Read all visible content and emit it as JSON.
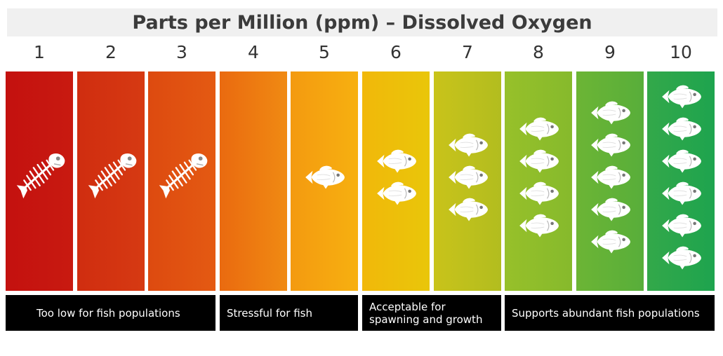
{
  "title": "Parts per Million (ppm) – Dissolved Oxygen",
  "levels": [
    {
      "ppm": "1",
      "color_top": "#c4110f",
      "color_bottom": "#c81a10",
      "icon": "fish-skeleton-icon",
      "fish": 0,
      "skeleton": true
    },
    {
      "ppm": "2",
      "color_top": "#d02d10",
      "color_bottom": "#d63a12",
      "icon": "fish-skeleton-icon",
      "fish": 0,
      "skeleton": true
    },
    {
      "ppm": "3",
      "color_top": "#dd4a10",
      "color_bottom": "#e45a12",
      "icon": "fish-skeleton-icon",
      "fish": 0,
      "skeleton": true
    },
    {
      "ppm": "4",
      "color_top": "#ea6a10",
      "color_bottom": "#f08a12",
      "icon": "none",
      "fish": 0,
      "skeleton": false
    },
    {
      "ppm": "5",
      "color_top": "#f49a10",
      "color_bottom": "#f7b010",
      "icon": "fish-icon",
      "fish": 1,
      "skeleton": false
    },
    {
      "ppm": "6",
      "color_top": "#f1b80a",
      "color_bottom": "#e9c60a",
      "icon": "fish-icon",
      "fish": 2,
      "skeleton": false
    },
    {
      "ppm": "7",
      "color_top": "#c9c31a",
      "color_bottom": "#b2bd1f",
      "icon": "fish-icon",
      "fish": 3,
      "skeleton": false
    },
    {
      "ppm": "8",
      "color_top": "#97c02a",
      "color_bottom": "#86ba2c",
      "icon": "fish-icon",
      "fish": 4,
      "skeleton": false
    },
    {
      "ppm": "9",
      "color_top": "#6cb535",
      "color_bottom": "#58ae3a",
      "icon": "fish-icon",
      "fish": 5,
      "skeleton": false
    },
    {
      "ppm": "10",
      "color_top": "#33a84a",
      "color_bottom": "#1ea44e",
      "icon": "fish-icon",
      "fish": 6,
      "skeleton": false
    }
  ],
  "categories": [
    {
      "label": "Too low for fish populations",
      "from": 1,
      "to": 3
    },
    {
      "label": "Stressful for fish",
      "from": 4,
      "to": 5
    },
    {
      "label": "Acceptable for\nspawning and growth",
      "from": 6,
      "to": 7
    },
    {
      "label": "Supports abundant fish populations",
      "from": 8,
      "to": 10
    }
  ]
}
